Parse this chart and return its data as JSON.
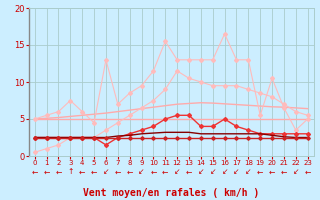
{
  "x": [
    0,
    1,
    2,
    3,
    4,
    5,
    6,
    7,
    8,
    9,
    10,
    11,
    12,
    13,
    14,
    15,
    16,
    17,
    18,
    19,
    20,
    21,
    22,
    23
  ],
  "background_color": "#cceeff",
  "grid_color": "#aacccc",
  "xlabel": "Vent moyen/en rafales ( km/h )",
  "xlabel_color": "#cc0000",
  "tick_color": "#cc0000",
  "ylim": [
    0,
    20
  ],
  "yticks": [
    0,
    5,
    10,
    15,
    20
  ],
  "line_flat5_y": [
    5.0,
    5.0,
    5.0,
    5.0,
    5.0,
    5.0,
    5.0,
    5.0,
    5.0,
    5.0,
    5.0,
    5.0,
    5.0,
    5.0,
    5.0,
    5.0,
    5.0,
    5.0,
    5.0,
    5.0,
    5.0,
    5.0,
    5.0,
    5.0
  ],
  "line_flat5_color": "#ffaaaa",
  "line_flat5_lw": 1.0,
  "line_trend_y": [
    5.0,
    5.1,
    5.2,
    5.35,
    5.5,
    5.65,
    5.8,
    6.0,
    6.2,
    6.4,
    6.6,
    6.8,
    7.0,
    7.1,
    7.2,
    7.15,
    7.05,
    6.95,
    6.85,
    6.75,
    6.65,
    6.6,
    6.5,
    6.4
  ],
  "line_trend_color": "#ffaaaa",
  "line_trend_lw": 1.0,
  "line_upper_y": [
    5.0,
    5.5,
    6.0,
    7.5,
    6.0,
    4.5,
    13.0,
    7.0,
    8.5,
    9.5,
    11.5,
    15.5,
    13.0,
    13.0,
    13.0,
    13.0,
    16.5,
    13.0,
    13.0,
    5.5,
    10.5,
    6.5,
    3.5,
    5.0
  ],
  "line_upper_color": "#ffbbbb",
  "line_upper_lw": 0.8,
  "line_upper_marker": "D",
  "line_upper_ms": 2.0,
  "line_mid_y": [
    0.5,
    1.0,
    1.5,
    2.5,
    2.5,
    2.5,
    3.5,
    4.5,
    5.5,
    6.5,
    7.5,
    9.0,
    11.5,
    10.5,
    10.0,
    9.5,
    9.5,
    9.5,
    9.0,
    8.5,
    8.0,
    7.0,
    6.0,
    5.5
  ],
  "line_mid_color": "#ffbbbb",
  "line_mid_lw": 0.8,
  "line_mid_marker": "D",
  "line_mid_ms": 2.0,
  "line_red1_y": [
    2.5,
    2.5,
    2.5,
    2.5,
    2.5,
    2.5,
    1.5,
    2.5,
    3.0,
    3.5,
    4.0,
    5.0,
    5.5,
    5.5,
    4.0,
    4.0,
    5.0,
    4.0,
    3.5,
    3.0,
    3.0,
    3.0,
    3.0,
    3.0
  ],
  "line_red1_color": "#ee3333",
  "line_red1_lw": 1.0,
  "line_red1_marker": "D",
  "line_red1_ms": 2.0,
  "line_darkred_y": [
    2.5,
    2.5,
    2.5,
    2.5,
    2.5,
    2.5,
    2.5,
    2.7,
    2.8,
    3.0,
    3.1,
    3.2,
    3.2,
    3.2,
    3.0,
    3.0,
    3.0,
    3.0,
    3.0,
    3.0,
    2.8,
    2.6,
    2.5,
    2.5
  ],
  "line_darkred_color": "#880000",
  "line_darkred_lw": 1.0,
  "line_flat25_y": [
    2.5,
    2.5,
    2.5,
    2.5,
    2.5,
    2.5,
    2.5,
    2.5,
    2.5,
    2.5,
    2.5,
    2.5,
    2.5,
    2.5,
    2.5,
    2.5,
    2.5,
    2.5,
    2.5,
    2.5,
    2.5,
    2.5,
    2.5,
    2.5
  ],
  "line_flat25_color": "#cc2222",
  "line_flat25_lw": 1.0,
  "line_flat25_marker": "D",
  "line_flat25_ms": 1.8,
  "arrow_angles": [
    200,
    210,
    190,
    270,
    210,
    200,
    220,
    200,
    210,
    215,
    205,
    210,
    220,
    200,
    215,
    225,
    235,
    230,
    220,
    200,
    210,
    200,
    215,
    210
  ],
  "arrow_color": "#cc0000"
}
